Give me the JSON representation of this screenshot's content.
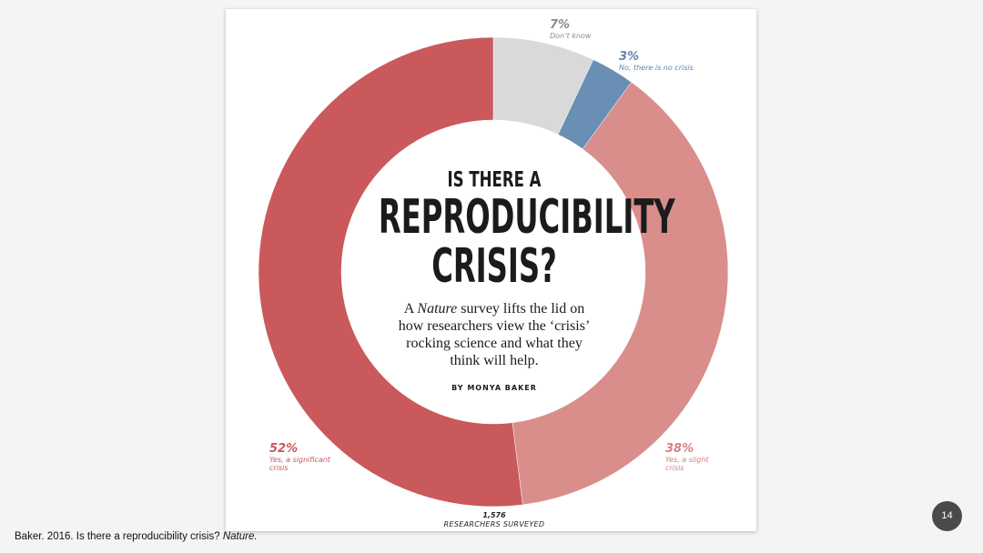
{
  "chart_data": {
    "type": "pie",
    "variant": "donut",
    "title_line1": "IS THERE A",
    "title_line2": "REPRODUCIBILITY",
    "title_line3": "CRISIS?",
    "subtitle_pre": "A",
    "subtitle_italic": "Nature",
    "subtitle_post": "survey lifts the lid on how researchers view the ‘crisis’ rocking science and what they think will help.",
    "byline": "BY MONYA BAKER",
    "total": "1,576",
    "total_label": "RESEARCHERS SURVEYED",
    "slices": [
      {
        "label": "Don’t know",
        "value": 7,
        "pct_text": "7%",
        "color": "#d9d9d9"
      },
      {
        "label": "No, there is no crisis",
        "value": 3,
        "pct_text": "3%",
        "color": "#6a8fb4"
      },
      {
        "label": "Yes, a slight crisis",
        "value": 38,
        "pct_text": "38%",
        "color": "#d98e8c"
      },
      {
        "label": "Yes, a significant crisis",
        "value": 52,
        "pct_text": "52%",
        "color": "#c9595b"
      }
    ]
  },
  "labels": {
    "dontknow_pct": "7%",
    "dontknow_text": "Don’t know",
    "no_pct": "3%",
    "no_text": "No, there is no crisis",
    "slight_pct": "38%",
    "slight_text_1": "Yes, a slight",
    "slight_text_2": "crisis",
    "significant_pct": "52%",
    "significant_text_1": "Yes, a significant",
    "significant_text_2": "crisis"
  },
  "footer": {
    "citation_pre": "Baker. 2016. Is there a reproducibility crisis?",
    "citation_italic": "Nature.",
    "page_number": "14"
  }
}
